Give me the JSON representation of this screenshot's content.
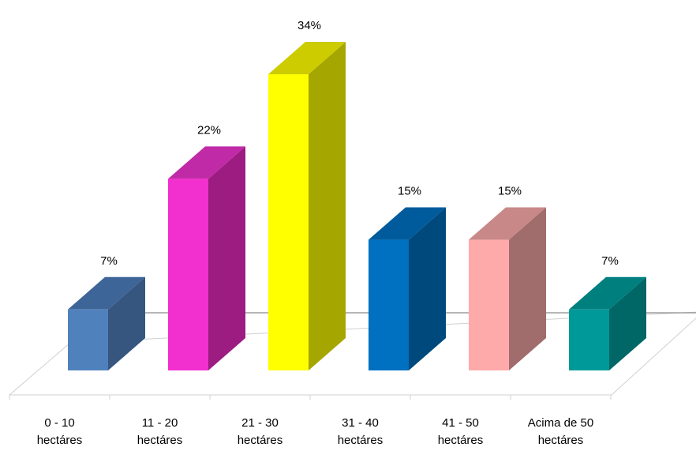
{
  "chart_data": {
    "type": "bar",
    "style": "3d-column",
    "categories": [
      [
        "0 - 10",
        "hectáres"
      ],
      [
        "11 - 20",
        "hectáres"
      ],
      [
        "21 - 30",
        "hectáres"
      ],
      [
        "31 - 40",
        "hectáres"
      ],
      [
        "41 - 50",
        "hectáres"
      ],
      [
        "Acima de 50",
        "hectáres"
      ]
    ],
    "values": [
      7,
      22,
      34,
      15,
      15,
      7
    ],
    "data_labels": [
      "7%",
      "22%",
      "34%",
      "15%",
      "15%",
      "7%"
    ],
    "colors": [
      {
        "front": "#4f81bd",
        "side": "#36567f",
        "top": "#3e6597"
      },
      {
        "front": "#f22fcf",
        "side": "#9c1c82",
        "top": "#c02aa6"
      },
      {
        "front": "#ffff00",
        "side": "#a6a600",
        "top": "#cccc00"
      },
      {
        "front": "#0070c0",
        "side": "#00497c",
        "top": "#005b9c"
      },
      {
        "front": "#ffaaaa",
        "side": "#a06c6c",
        "top": "#c98888"
      },
      {
        "front": "#009999",
        "side": "#006666",
        "top": "#007f7f"
      }
    ],
    "ylim": [
      0,
      34
    ],
    "grid": false,
    "legend": "none",
    "title": "",
    "xlabel": "",
    "ylabel": ""
  }
}
